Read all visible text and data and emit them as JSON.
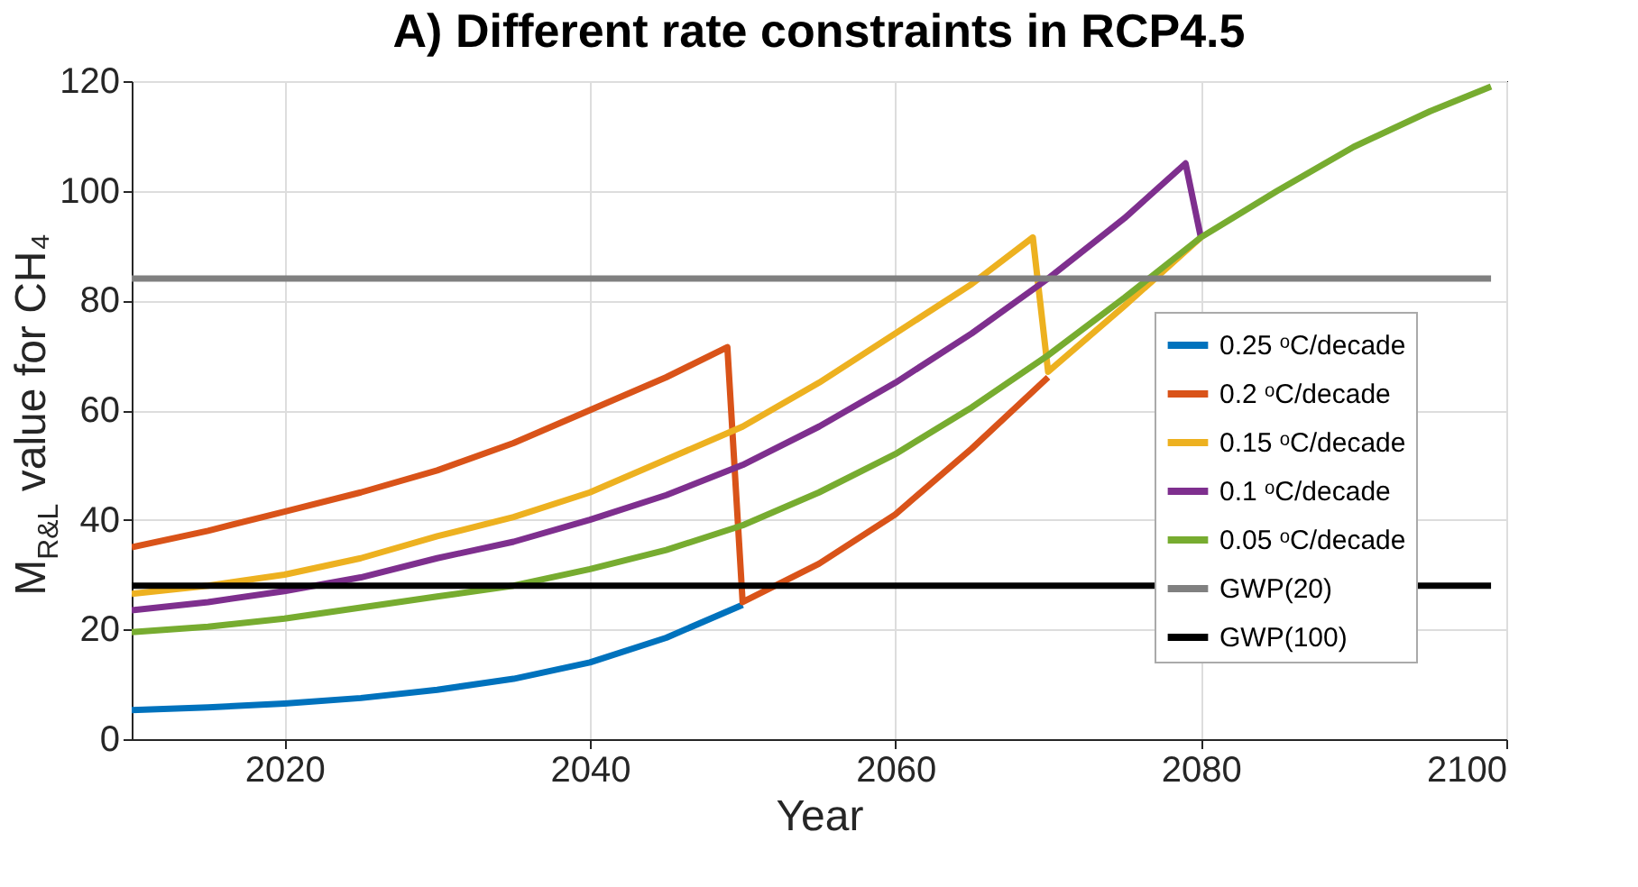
{
  "chart_data": {
    "type": "line",
    "title": "A) Different rate constraints in RCP4.5",
    "xlabel": "Year",
    "ylabel": "M$_{R&L}$ value for CH₄",
    "xlim": [
      2010,
      2100
    ],
    "xticks": [
      2020,
      2040,
      2060,
      2080,
      2100
    ],
    "ylim": [
      0,
      120
    ],
    "yticks": [
      0,
      20,
      40,
      60,
      80,
      100,
      120
    ],
    "grid": true,
    "legend": "right",
    "line_style": "solid",
    "marker": "none",
    "series": [
      {
        "name": "0.25 ᵒC/decade",
        "color": "#0072bd",
        "x": [
          2010,
          2015,
          2020,
          2025,
          2030,
          2035,
          2040,
          2045,
          2050
        ],
        "values": [
          5.3,
          5.8,
          6.5,
          7.5,
          9,
          11,
          14,
          18.5,
          24.5
        ]
      },
      {
        "name": "0.2 ᵒC/decade",
        "color": "#d95319",
        "x": [
          2010,
          2015,
          2020,
          2025,
          2030,
          2035,
          2040,
          2045,
          2049,
          2050,
          2055,
          2060,
          2065,
          2070
        ],
        "values": [
          35,
          38,
          41.5,
          45,
          49,
          54,
          60,
          66,
          71.5,
          25,
          32,
          41,
          53,
          66
        ]
      },
      {
        "name": "0.15 ᵒC/decade",
        "color": "#edb120",
        "x": [
          2010,
          2015,
          2020,
          2025,
          2030,
          2035,
          2040,
          2045,
          2050,
          2055,
          2060,
          2065,
          2069,
          2070,
          2075,
          2080
        ],
        "values": [
          26.5,
          28,
          30,
          33,
          37,
          40.5,
          45,
          51,
          57,
          65,
          74,
          83,
          91.5,
          67,
          79,
          91.5
        ]
      },
      {
        "name": "0.1 ᵒC/decade",
        "color": "#7e2f8e",
        "x": [
          2010,
          2015,
          2020,
          2025,
          2030,
          2035,
          2040,
          2045,
          2050,
          2055,
          2060,
          2065,
          2070,
          2075,
          2079,
          2080
        ],
        "values": [
          23.5,
          25,
          27,
          29.5,
          33,
          36,
          40,
          44.5,
          50,
          57,
          65,
          74,
          84,
          95,
          105,
          91.5
        ]
      },
      {
        "name": "0.05 ᵒC/decade",
        "color": "#77ac30",
        "x": [
          2010,
          2015,
          2020,
          2025,
          2030,
          2035,
          2040,
          2045,
          2050,
          2055,
          2060,
          2065,
          2070,
          2075,
          2080,
          2085,
          2090,
          2095,
          2099
        ],
        "values": [
          19.5,
          20.5,
          22,
          24,
          26,
          28,
          31,
          34.5,
          39,
          45,
          52,
          60.5,
          70,
          80.5,
          91.5,
          100,
          108,
          114.5,
          119
        ]
      },
      {
        "name": "GWP(20)",
        "color": "#808080",
        "x": [
          2010,
          2099
        ],
        "values": [
          84,
          84
        ]
      },
      {
        "name": "GWP(100)",
        "color": "#000000",
        "x": [
          2010,
          2099
        ],
        "values": [
          28,
          28
        ]
      }
    ]
  }
}
